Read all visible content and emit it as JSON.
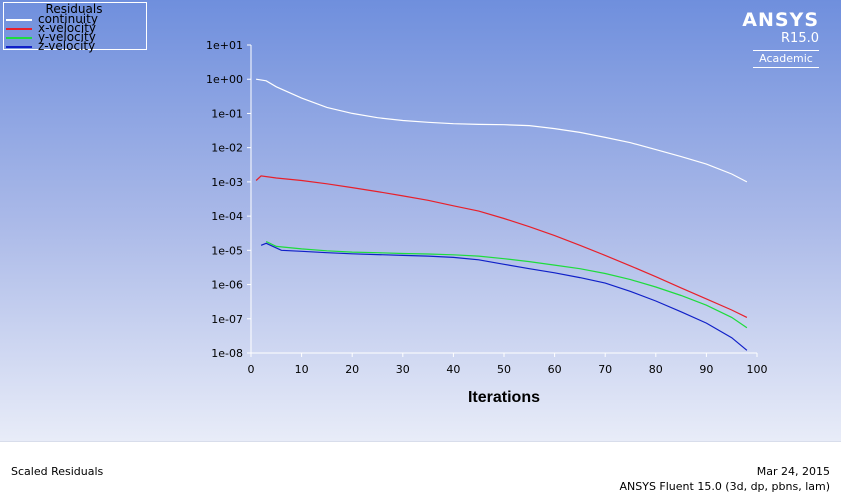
{
  "legend": {
    "title": "Residuals",
    "entries": [
      {
        "label": "continuity",
        "color": "#ffffff"
      },
      {
        "label": "x-velocity",
        "color": "#e8202a"
      },
      {
        "label": "y-velocity",
        "color": "#1edc3c"
      },
      {
        "label": "z-velocity",
        "color": "#1020c8"
      }
    ]
  },
  "brand": {
    "name": "ANSYS",
    "version": "R15.0",
    "edition": "Academic"
  },
  "footer": {
    "title": "Scaled Residuals",
    "date": "Mar 24, 2015",
    "solver": "ANSYS Fluent 15.0 (3d, dp, pbns, lam)"
  },
  "chart_data": {
    "type": "line",
    "xlabel": "Iterations",
    "ylabel": "",
    "xlim": [
      0,
      100
    ],
    "ylim_exponent": [
      -8,
      1
    ],
    "yscale": "log",
    "x_ticks": [
      0,
      10,
      20,
      30,
      40,
      50,
      60,
      70,
      80,
      90,
      100
    ],
    "y_ticks": [
      "1e+01",
      "1e+00",
      "1e-01",
      "1e-02",
      "1e-03",
      "1e-04",
      "1e-05",
      "1e-06",
      "1e-07",
      "1e-08"
    ],
    "series": [
      {
        "name": "continuity",
        "color": "#ffffff",
        "points": [
          [
            1,
            1.0
          ],
          [
            3,
            0.9
          ],
          [
            5,
            0.6
          ],
          [
            10,
            0.28
          ],
          [
            15,
            0.15
          ],
          [
            20,
            0.1
          ],
          [
            25,
            0.075
          ],
          [
            30,
            0.062
          ],
          [
            35,
            0.055
          ],
          [
            40,
            0.05
          ],
          [
            45,
            0.048
          ],
          [
            50,
            0.047
          ],
          [
            55,
            0.044
          ],
          [
            60,
            0.036
          ],
          [
            65,
            0.028
          ],
          [
            70,
            0.02
          ],
          [
            75,
            0.014
          ],
          [
            80,
            0.0088
          ],
          [
            85,
            0.0055
          ],
          [
            90,
            0.0033
          ],
          [
            95,
            0.0017
          ],
          [
            98,
            0.001
          ]
        ]
      },
      {
        "name": "x-velocity",
        "color": "#e8202a",
        "points": [
          [
            1,
            0.0011
          ],
          [
            2,
            0.0015
          ],
          [
            5,
            0.0013
          ],
          [
            10,
            0.0011
          ],
          [
            15,
            0.00088
          ],
          [
            20,
            0.00068
          ],
          [
            25,
            0.00052
          ],
          [
            30,
            0.00039
          ],
          [
            35,
            0.00029
          ],
          [
            40,
            0.0002
          ],
          [
            45,
            0.00014
          ],
          [
            50,
            8.5e-05
          ],
          [
            55,
            4.9e-05
          ],
          [
            60,
            2.7e-05
          ],
          [
            65,
            1.4e-05
          ],
          [
            70,
            7.1e-06
          ],
          [
            75,
            3.5e-06
          ],
          [
            80,
            1.7e-06
          ],
          [
            85,
            8e-07
          ],
          [
            90,
            3.8e-07
          ],
          [
            95,
            1.8e-07
          ],
          [
            98,
            1.1e-07
          ]
        ]
      },
      {
        "name": "y-velocity",
        "color": "#1edc3c",
        "points": [
          [
            3,
            1.8e-05
          ],
          [
            5,
            1.3e-05
          ],
          [
            10,
            1.1e-05
          ],
          [
            15,
            9.7e-06
          ],
          [
            20,
            8.9e-06
          ],
          [
            25,
            8.5e-06
          ],
          [
            30,
            8.1e-06
          ],
          [
            35,
            7.8e-06
          ],
          [
            40,
            7.4e-06
          ],
          [
            45,
            6.8e-06
          ],
          [
            50,
            5.7e-06
          ],
          [
            55,
            4.7e-06
          ],
          [
            60,
            3.7e-06
          ],
          [
            65,
            2.9e-06
          ],
          [
            70,
            2.1e-06
          ],
          [
            75,
            1.4e-06
          ],
          [
            80,
            8.5e-07
          ],
          [
            85,
            4.8e-07
          ],
          [
            90,
            2.5e-07
          ],
          [
            95,
            1.1e-07
          ],
          [
            98,
            5.5e-08
          ]
        ]
      },
      {
        "name": "z-velocity",
        "color": "#1020c8",
        "points": [
          [
            2,
            1.4e-05
          ],
          [
            3,
            1.6e-05
          ],
          [
            6,
            1e-05
          ],
          [
            10,
            9.4e-06
          ],
          [
            15,
            8.5e-06
          ],
          [
            20,
            7.9e-06
          ],
          [
            25,
            7.5e-06
          ],
          [
            30,
            7.1e-06
          ],
          [
            35,
            6.8e-06
          ],
          [
            40,
            6.2e-06
          ],
          [
            45,
            5.3e-06
          ],
          [
            50,
            3.9e-06
          ],
          [
            55,
            2.9e-06
          ],
          [
            60,
            2.2e-06
          ],
          [
            65,
            1.6e-06
          ],
          [
            70,
            1.1e-06
          ],
          [
            75,
            6.3e-07
          ],
          [
            80,
            3.3e-07
          ],
          [
            85,
            1.6e-07
          ],
          [
            90,
            7.5e-08
          ],
          [
            95,
            2.8e-08
          ],
          [
            98,
            1.2e-08
          ]
        ]
      }
    ]
  }
}
